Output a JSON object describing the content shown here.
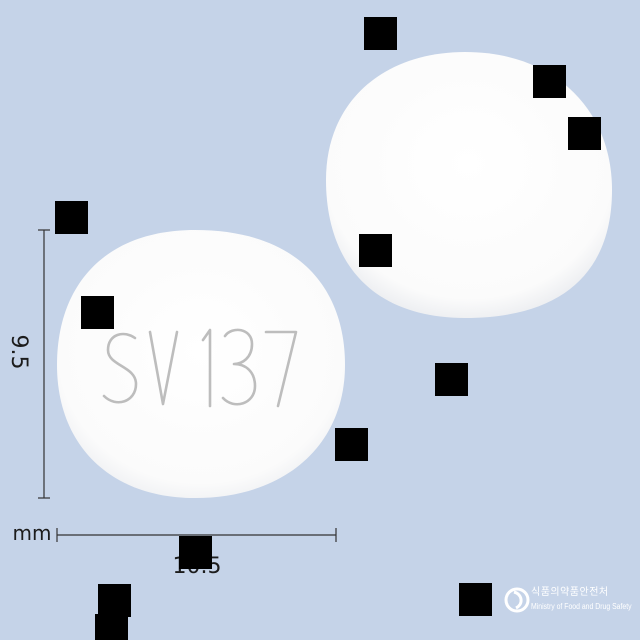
{
  "image": {
    "subject": "pill",
    "background_color": "#c5d3e8"
  },
  "pill": {
    "imprint": "SV 137",
    "color": "#ffffff"
  },
  "dimensions": {
    "unit": "mm",
    "height": "9.5",
    "width": "10.5"
  },
  "logo": {
    "korean": "식품의약품안전처",
    "english": "Ministry of Food and Drug Safety"
  }
}
